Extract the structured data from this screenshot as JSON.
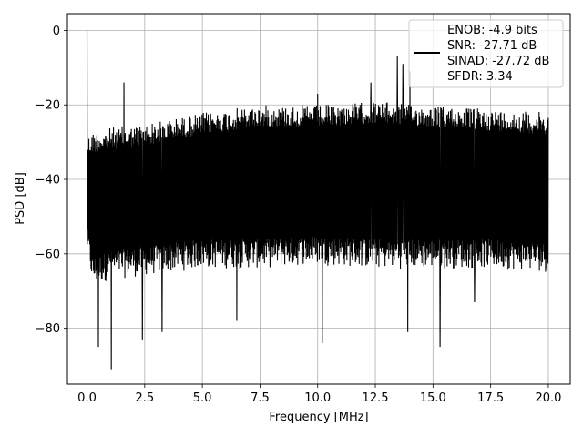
{
  "chart_data": {
    "type": "line",
    "title": "",
    "xlabel": "Frequency [MHz]",
    "ylabel": "PSD [dB]",
    "xlim": [
      -0.85,
      20.95
    ],
    "ylim": [
      -95,
      4.5
    ],
    "xticks": [
      0.0,
      2.5,
      5.0,
      7.5,
      10.0,
      12.5,
      15.0,
      17.5,
      20.0
    ],
    "xtick_labels": [
      "0.0",
      "2.5",
      "5.0",
      "7.5",
      "10.0",
      "12.5",
      "15.0",
      "17.5",
      "20.0"
    ],
    "yticks": [
      0,
      -20,
      -40,
      -60,
      -80
    ],
    "ytick_labels": [
      "0",
      "−20",
      "−40",
      "−60",
      "−80"
    ],
    "grid": true,
    "line_color": "#000000",
    "legend": {
      "placement": "upper-right",
      "entries": [
        "ENOB: -4.9 bits",
        "SNR: -27.71 dB",
        "SINAD: -27.72 dB",
        "SFDR: 3.34"
      ]
    },
    "series": [
      {
        "description": "dense noise spectrum",
        "envelope": {
          "x": [
            0.0,
            0.25,
            1.0,
            2.5,
            5.0,
            7.5,
            10.0,
            12.5,
            15.0,
            17.5,
            20.0
          ],
          "upper": [
            -28,
            -27,
            -26,
            -25,
            -22,
            -20,
            -20,
            -19,
            -20,
            -21,
            -22
          ],
          "lower": [
            -60,
            -69,
            -67,
            -66,
            -64,
            -64,
            -63,
            -64,
            -64,
            -64,
            -65
          ]
        },
        "spikes": [
          {
            "x": 0.0,
            "y": 0.0
          },
          {
            "x": 0.5,
            "y": -85
          },
          {
            "x": 1.05,
            "y": -91
          },
          {
            "x": 1.6,
            "y": -14
          },
          {
            "x": 2.4,
            "y": -83
          },
          {
            "x": 3.25,
            "y": -81
          },
          {
            "x": 6.5,
            "y": -78
          },
          {
            "x": 10.2,
            "y": -84
          },
          {
            "x": 10.0,
            "y": -17
          },
          {
            "x": 13.45,
            "y": -7
          },
          {
            "x": 13.7,
            "y": -9
          },
          {
            "x": 14.0,
            "y": -11
          },
          {
            "x": 13.9,
            "y": -81
          },
          {
            "x": 15.3,
            "y": -85
          },
          {
            "x": 12.3,
            "y": -14
          },
          {
            "x": 16.8,
            "y": -73
          }
        ]
      }
    ]
  }
}
